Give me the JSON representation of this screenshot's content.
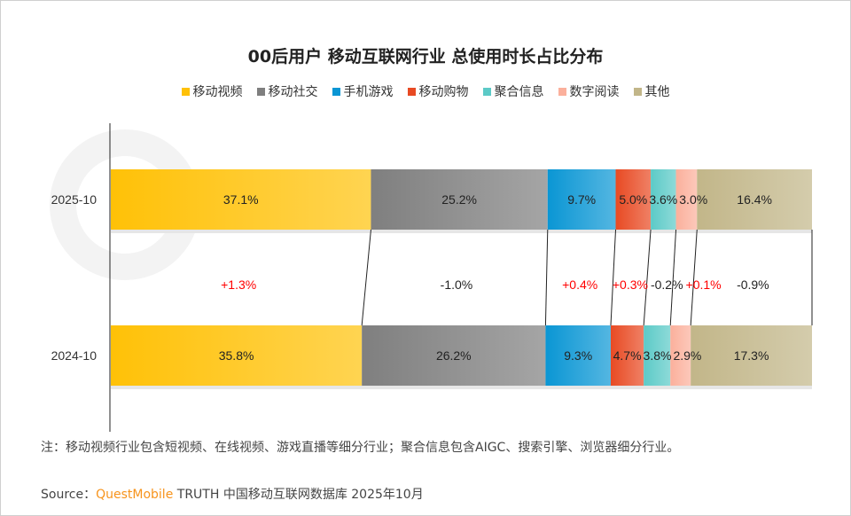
{
  "chart_data": {
    "type": "bar",
    "orientation": "horizontal",
    "stacked": "100%",
    "title": "00后用户 移动互联网行业 总使用时长占比分布",
    "legend_position": "top",
    "categories": [
      "2025-10",
      "2024-10"
    ],
    "series": [
      {
        "name": "移动视频",
        "values": [
          37.1,
          35.8
        ],
        "labels": [
          "37.1%",
          "35.8%"
        ],
        "change": "+1.3%",
        "color": "#ffc107"
      },
      {
        "name": "移动社交",
        "values": [
          25.2,
          26.2
        ],
        "labels": [
          "25.2%",
          "26.2%"
        ],
        "change": "-1.0%",
        "color": "#7f7f7f"
      },
      {
        "name": "手机游戏",
        "values": [
          9.7,
          9.3
        ],
        "labels": [
          "9.7%",
          "9.3%"
        ],
        "change": "+0.4%",
        "color": "#0a96d4"
      },
      {
        "name": "移动购物",
        "values": [
          5.0,
          4.7
        ],
        "labels": [
          "5.0%",
          "4.7%"
        ],
        "change": "+0.3%",
        "color": "#e84a23"
      },
      {
        "name": "聚合信息",
        "values": [
          3.6,
          3.8
        ],
        "labels": [
          "3.6%",
          "3.8%"
        ],
        "change": "-0.2%",
        "color": "#5ccac7"
      },
      {
        "name": "数字阅读",
        "values": [
          3.0,
          2.9
        ],
        "labels": [
          "3.0%",
          "2.9%"
        ],
        "change": "+0.1%",
        "color": "#fbb09c"
      },
      {
        "name": "其他",
        "values": [
          16.4,
          17.3
        ],
        "labels": [
          "16.4%",
          "17.3%"
        ],
        "change": "-0.9%",
        "color": "#c2b689"
      }
    ],
    "positive_change_color": "#ff0000",
    "negative_change_color": "#222222",
    "xlim": [
      0,
      100
    ],
    "grid": false
  },
  "watermark": "QUESTMOBILE",
  "note": "注：移动视频行业包含短视频、在线视频、游戏直播等细分行业；聚合信息包含AIGC、搜索引擎、浏览器细分行业。",
  "source": {
    "prefix": "Source：",
    "brand": "QuestMobile",
    "text": " TRUTH 中国移动互联网数据库 2025年10月"
  }
}
